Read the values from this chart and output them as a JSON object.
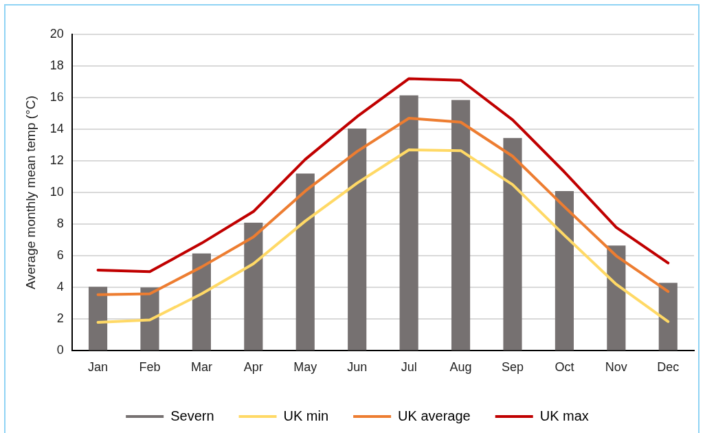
{
  "chart_data": {
    "type": "bar",
    "ylabel": "Average monthly mean temp (°C)",
    "categories": [
      "Jan",
      "Feb",
      "Mar",
      "Apr",
      "May",
      "Jun",
      "Jul",
      "Aug",
      "Sep",
      "Oct",
      "Nov",
      "Dec"
    ],
    "series": [
      {
        "name": "Severn",
        "color": "#767171",
        "values": [
          4.05,
          4.0,
          6.15,
          8.1,
          11.2,
          14.05,
          16.15,
          15.85,
          13.45,
          10.1,
          6.65,
          4.3
        ]
      },
      {
        "name": "UK min",
        "type": "line",
        "color": "#ffd966",
        "values": [
          1.8,
          1.95,
          3.6,
          5.5,
          8.2,
          10.6,
          12.7,
          12.65,
          10.5,
          7.3,
          4.2,
          1.85
        ]
      },
      {
        "name": "UK average",
        "type": "line",
        "color": "#ed7d31",
        "values": [
          3.55,
          3.6,
          5.3,
          7.2,
          10.1,
          12.6,
          14.7,
          14.45,
          12.3,
          9.1,
          6.0,
          3.75
        ]
      },
      {
        "name": "UK max",
        "type": "line",
        "color": "#c00000",
        "values": [
          5.1,
          5.0,
          6.8,
          8.8,
          12.1,
          14.8,
          17.2,
          17.1,
          14.6,
          11.3,
          7.8,
          5.55
        ]
      }
    ],
    "ylim": [
      0,
      20
    ],
    "yticks": [
      0,
      2,
      4,
      6,
      8,
      10,
      12,
      14,
      16,
      18,
      20
    ],
    "grid": "y",
    "legend": "bottom",
    "marker": "none"
  }
}
